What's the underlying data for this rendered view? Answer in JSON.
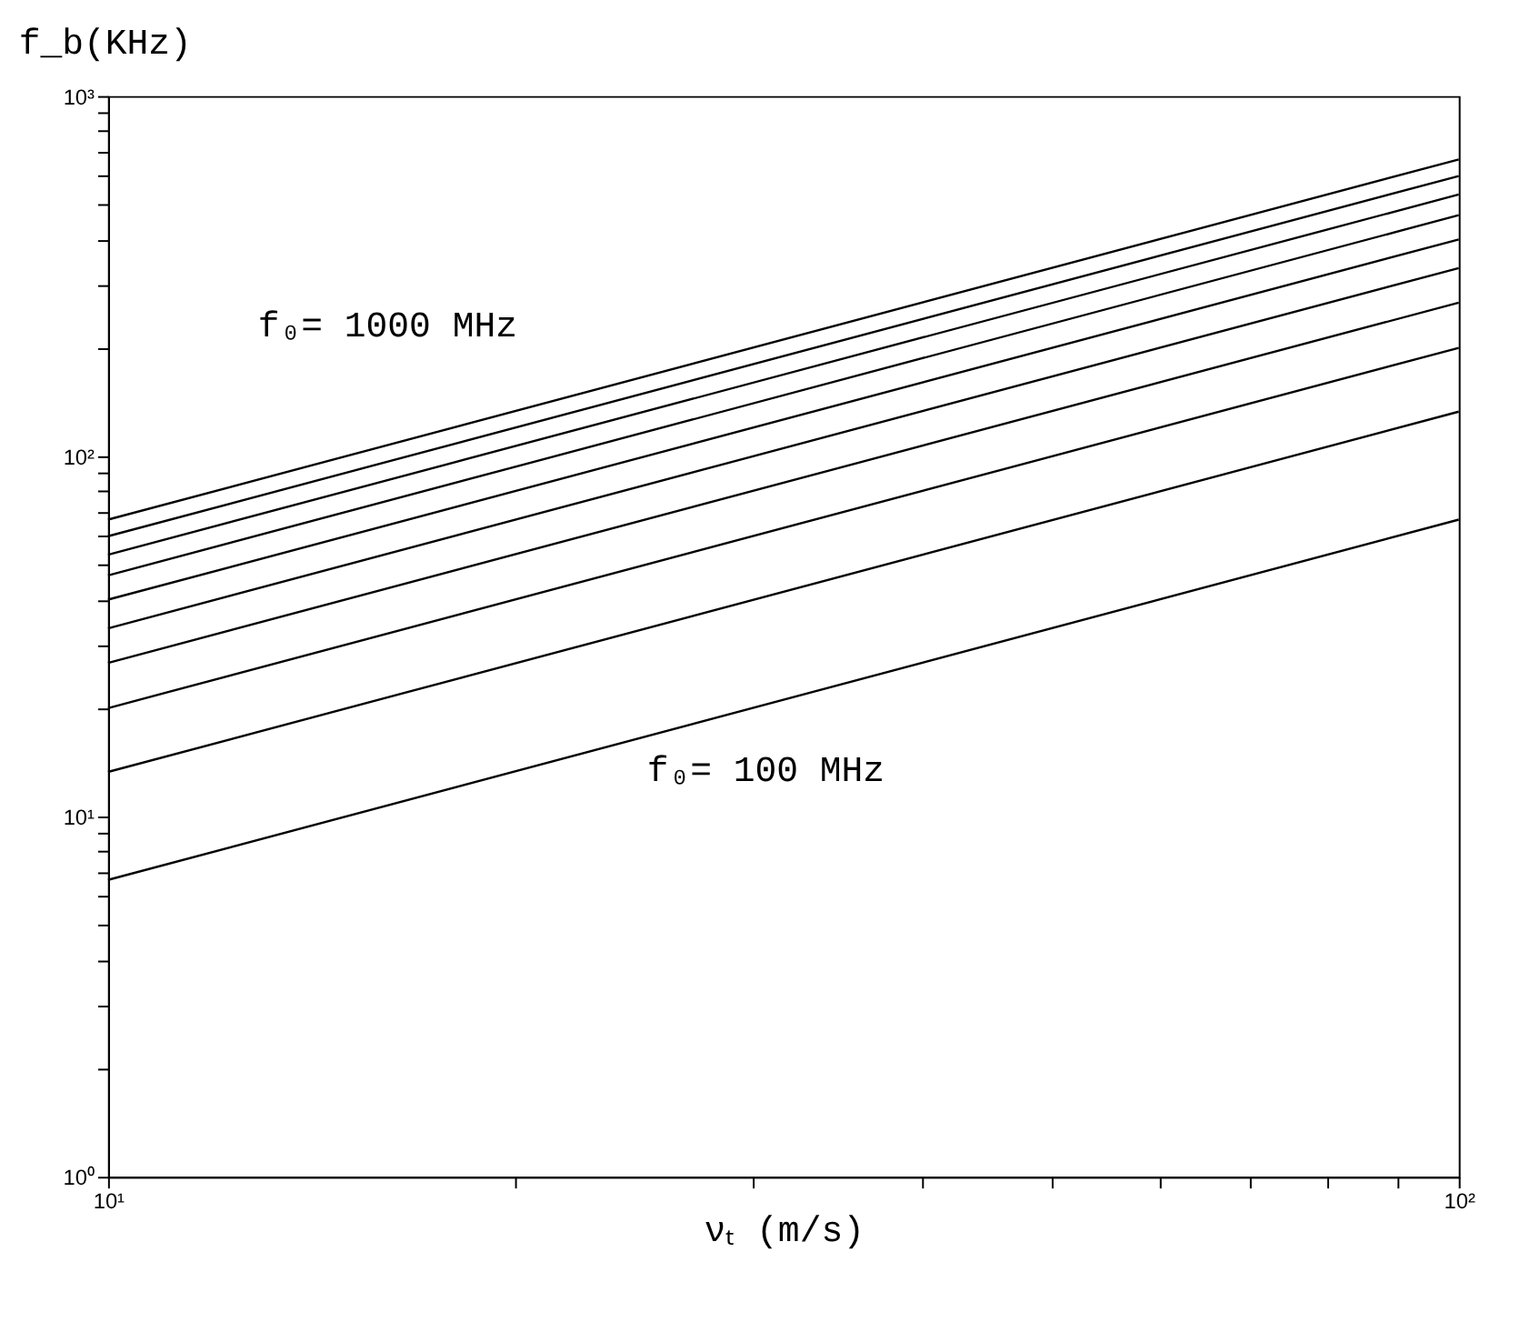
{
  "chart_data": {
    "type": "line",
    "xlabel": "νₜ  (m/s)",
    "ylabel": "f_b(KHz)",
    "log": "xy",
    "grid": false,
    "marker": "none",
    "line_style": "solid",
    "xlim": [
      10,
      100
    ],
    "ylim": [
      1,
      1000
    ],
    "xticks": [
      {
        "value": 10,
        "label": "10¹"
      },
      {
        "value": 20,
        "label": null
      },
      {
        "value": 30,
        "label": null
      },
      {
        "value": 40,
        "label": null
      },
      {
        "value": 50,
        "label": null
      },
      {
        "value": 60,
        "label": null
      },
      {
        "value": 70,
        "label": null
      },
      {
        "value": 80,
        "label": null
      },
      {
        "value": 90,
        "label": null
      },
      {
        "value": 100,
        "label": "10²"
      }
    ],
    "yticks": [
      {
        "value": 1,
        "label": "10⁰"
      },
      {
        "value": 2,
        "label": null
      },
      {
        "value": 3,
        "label": null
      },
      {
        "value": 4,
        "label": null
      },
      {
        "value": 5,
        "label": null
      },
      {
        "value": 6,
        "label": null
      },
      {
        "value": 7,
        "label": null
      },
      {
        "value": 8,
        "label": null
      },
      {
        "value": 9,
        "label": null
      },
      {
        "value": 10,
        "label": "10¹"
      },
      {
        "value": 20,
        "label": null
      },
      {
        "value": 30,
        "label": null
      },
      {
        "value": 40,
        "label": null
      },
      {
        "value": 50,
        "label": null
      },
      {
        "value": 60,
        "label": null
      },
      {
        "value": 70,
        "label": null
      },
      {
        "value": 80,
        "label": null
      },
      {
        "value": 90,
        "label": null
      },
      {
        "value": 100,
        "label": "10²"
      },
      {
        "value": 200,
        "label": null
      },
      {
        "value": 300,
        "label": null
      },
      {
        "value": 400,
        "label": null
      },
      {
        "value": 500,
        "label": null
      },
      {
        "value": 600,
        "label": null
      },
      {
        "value": 700,
        "label": null
      },
      {
        "value": 800,
        "label": null
      },
      {
        "value": 900,
        "label": null
      },
      {
        "value": 1000,
        "label": "10³"
      }
    ],
    "x": [
      10,
      100
    ],
    "series": [
      {
        "color": "#000000",
        "values": [
          6.67,
          66.7
        ]
      },
      {
        "color": "#000000",
        "values": [
          13.3,
          133
        ]
      },
      {
        "color": "#000000",
        "values": [
          20,
          200
        ]
      },
      {
        "color": "#000000",
        "values": [
          26.7,
          267
        ]
      },
      {
        "color": "#000000",
        "values": [
          33.3,
          333
        ]
      },
      {
        "color": "#000000",
        "values": [
          40,
          400
        ]
      },
      {
        "color": "#000000",
        "values": [
          46.7,
          467
        ]
      },
      {
        "color": "#000000",
        "values": [
          53.3,
          533
        ]
      },
      {
        "color": "#000000",
        "values": [
          60,
          600
        ]
      },
      {
        "color": "#000000",
        "values": [
          66.7,
          667
        ]
      }
    ],
    "annotations": [
      "f₀= 1000 MHz",
      "f₀= 100 MHz"
    ]
  }
}
